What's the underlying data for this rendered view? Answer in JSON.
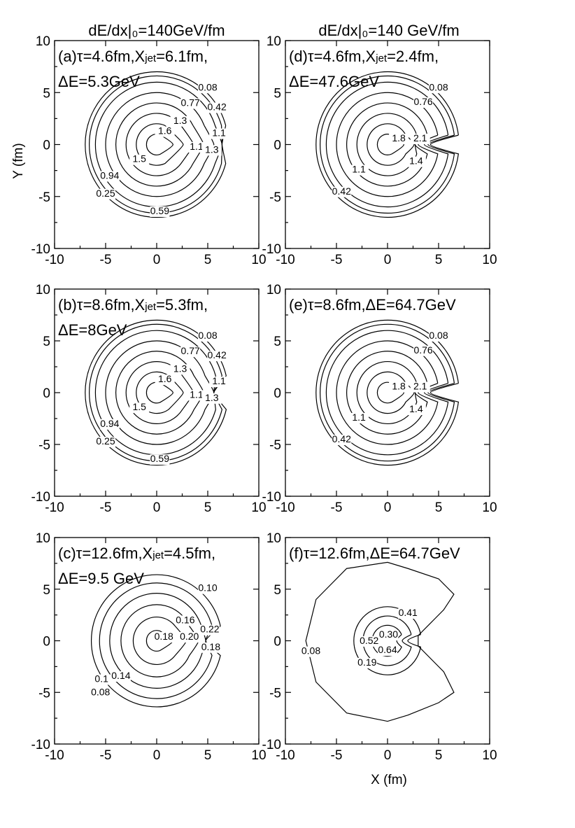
{
  "figure": {
    "column_titles": [
      "dE/dx|₀=140GeV/fm",
      "dE/dx|₀=140 GeV/fm"
    ],
    "ylabel": "Y (fm)",
    "xlabel": "X (fm)"
  },
  "chart_data": [
    {
      "type": "contour",
      "panel": "a",
      "annotation_line1": "(a)τ=4.6fm,X",
      "annotation_sub": "jet",
      "annotation_rest": "=6.1fm,",
      "annotation_line2": "ΔE=5.3GeV",
      "xlim": [
        -10,
        10
      ],
      "ylim": [
        -10,
        10
      ],
      "xticks": [
        "-10",
        "-5",
        "0",
        "5",
        "10"
      ],
      "yticks": [
        "10",
        "5",
        "0",
        "-5",
        "-10"
      ],
      "jet_x": 6.1,
      "contour_labels": [
        {
          "text": "0.08",
          "x": 5.0,
          "y": 5.2
        },
        {
          "text": "0.77",
          "x": 3.3,
          "y": 3.7
        },
        {
          "text": "0.42",
          "x": 5.9,
          "y": 3.3
        },
        {
          "text": "1.3",
          "x": 2.3,
          "y": 2.0
        },
        {
          "text": "1.6",
          "x": 0.8,
          "y": 1.0
        },
        {
          "text": "1.1",
          "x": 6.1,
          "y": 0.8
        },
        {
          "text": "1.1",
          "x": 3.9,
          "y": -0.5
        },
        {
          "text": "1.3",
          "x": 5.4,
          "y": -0.8
        },
        {
          "text": "1.5",
          "x": -1.7,
          "y": -1.7
        },
        {
          "text": "0.94",
          "x": -4.6,
          "y": -3.3
        },
        {
          "text": "0.25",
          "x": -5.0,
          "y": -5.0
        },
        {
          "text": "0.59",
          "x": 0.3,
          "y": -6.7
        }
      ]
    },
    {
      "type": "contour",
      "panel": "d",
      "annotation_line1": "(d)τ=4.6fm,X",
      "annotation_sub": "jet",
      "annotation_rest": "=2.4fm,",
      "annotation_line2": "ΔE=47.6GeV",
      "xlim": [
        -10,
        10
      ],
      "ylim": [
        -10,
        10
      ],
      "xticks": [
        "-10",
        "-5",
        "0",
        "5",
        "10"
      ],
      "yticks": [
        "10",
        "5",
        "0",
        "-5",
        "-10"
      ],
      "jet_x": 2.4,
      "contour_labels": [
        {
          "text": "0.08",
          "x": 5.0,
          "y": 5.2
        },
        {
          "text": "0.76",
          "x": 3.5,
          "y": 3.8
        },
        {
          "text": "1.8",
          "x": 1.1,
          "y": 0.3
        },
        {
          "text": "2.1",
          "x": 3.2,
          "y": 0.3
        },
        {
          "text": "1.4",
          "x": 2.8,
          "y": -1.9
        },
        {
          "text": "1.1",
          "x": -2.8,
          "y": -2.7
        },
        {
          "text": "0.42",
          "x": -4.5,
          "y": -4.8
        }
      ]
    },
    {
      "type": "contour",
      "panel": "b",
      "annotation_line1": "(b)τ=8.6fm,X",
      "annotation_sub": "jet",
      "annotation_rest": "=5.3fm,",
      "annotation_line2": "ΔE=8GeV",
      "xlim": [
        -10,
        10
      ],
      "ylim": [
        -10,
        10
      ],
      "xticks": [
        "-10",
        "-5",
        "0",
        "5",
        "10"
      ],
      "yticks": [
        "10",
        "5",
        "0",
        "-5",
        "-10"
      ],
      "jet_x": 5.3,
      "contour_labels": [
        {
          "text": "0.08",
          "x": 5.0,
          "y": 5.2
        },
        {
          "text": "0.77",
          "x": 3.3,
          "y": 3.7
        },
        {
          "text": "0.42",
          "x": 5.9,
          "y": 3.3
        },
        {
          "text": "1.3",
          "x": 2.3,
          "y": 2.0
        },
        {
          "text": "1.6",
          "x": 0.8,
          "y": 1.0
        },
        {
          "text": "1.1",
          "x": 6.1,
          "y": 0.8
        },
        {
          "text": "1.1",
          "x": 3.9,
          "y": -0.5
        },
        {
          "text": "1.3",
          "x": 5.4,
          "y": -0.8
        },
        {
          "text": "1.5",
          "x": -1.7,
          "y": -1.7
        },
        {
          "text": "0.94",
          "x": -4.6,
          "y": -3.3
        },
        {
          "text": "0.25",
          "x": -5.0,
          "y": -5.0
        },
        {
          "text": "0.59",
          "x": 0.3,
          "y": -6.7
        }
      ]
    },
    {
      "type": "contour",
      "panel": "e",
      "annotation_line1": "(e)τ=8.6fm,ΔE=64.7GeV",
      "annotation_sub": "",
      "annotation_rest": "",
      "annotation_line2": "",
      "xlim": [
        -10,
        10
      ],
      "ylim": [
        -10,
        10
      ],
      "xticks": [
        "-10",
        "-5",
        "0",
        "5",
        "10"
      ],
      "yticks": [
        "10",
        "5",
        "0",
        "-5",
        "-10"
      ],
      "jet_x": 2.4,
      "contour_labels": [
        {
          "text": "0.08",
          "x": 5.0,
          "y": 5.2
        },
        {
          "text": "0.76",
          "x": 3.5,
          "y": 3.8
        },
        {
          "text": "1.8",
          "x": 1.1,
          "y": 0.3
        },
        {
          "text": "2.1",
          "x": 3.2,
          "y": 0.3
        },
        {
          "text": "1.4",
          "x": 2.8,
          "y": -1.9
        },
        {
          "text": "1.1",
          "x": -2.8,
          "y": -2.7
        },
        {
          "text": "0.42",
          "x": -4.5,
          "y": -4.8
        }
      ]
    },
    {
      "type": "contour",
      "panel": "c",
      "annotation_line1": "(c)τ=12.6fm,X",
      "annotation_sub": "jet",
      "annotation_rest": "=4.5fm,",
      "annotation_line2": "ΔE=9.5 GeV",
      "xlim": [
        -10,
        10
      ],
      "ylim": [
        -10,
        10
      ],
      "xticks": [
        "-10",
        "-5",
        "0",
        "5",
        "10"
      ],
      "yticks": [
        "10",
        "5",
        "0",
        "-5",
        "-10"
      ],
      "jet_x": 4.5,
      "contour_labels": [
        {
          "text": "0.10",
          "x": 5.0,
          "y": 4.8
        },
        {
          "text": "0.16",
          "x": 2.8,
          "y": 1.7
        },
        {
          "text": "0.22",
          "x": 5.2,
          "y": 0.8
        },
        {
          "text": "0.18",
          "x": 0.7,
          "y": 0.1
        },
        {
          "text": "0.20",
          "x": 3.2,
          "y": 0.1
        },
        {
          "text": "0.18",
          "x": 5.3,
          "y": -0.9
        },
        {
          "text": "0.1",
          "x": -5.4,
          "y": -4.0
        },
        {
          "text": "0.14",
          "x": -3.5,
          "y": -3.7
        },
        {
          "text": "0.08",
          "x": -5.5,
          "y": -5.3
        }
      ]
    },
    {
      "type": "contour",
      "panel": "f",
      "annotation_line1": "(f)τ=12.6fm,ΔE=64.7GeV",
      "annotation_sub": "",
      "annotation_rest": "",
      "annotation_line2": "",
      "xlim": [
        -10,
        10
      ],
      "ylim": [
        -10,
        10
      ],
      "xticks": [
        "-10",
        "-5",
        "0",
        "5",
        "10"
      ],
      "yticks": [
        "10",
        "5",
        "0",
        "-5",
        "-10"
      ],
      "jet_x": 0.5,
      "contour_labels": [
        {
          "text": "0.41",
          "x": 2.0,
          "y": 2.4
        },
        {
          "text": "0.30",
          "x": 0.1,
          "y": 0.3
        },
        {
          "text": "0.52",
          "x": -1.8,
          "y": -0.3
        },
        {
          "text": "0.64",
          "x": 0.0,
          "y": -1.2
        },
        {
          "text": "0.19",
          "x": -2.0,
          "y": -2.4
        },
        {
          "text": "0.08",
          "x": -7.5,
          "y": -1.3
        }
      ]
    }
  ]
}
